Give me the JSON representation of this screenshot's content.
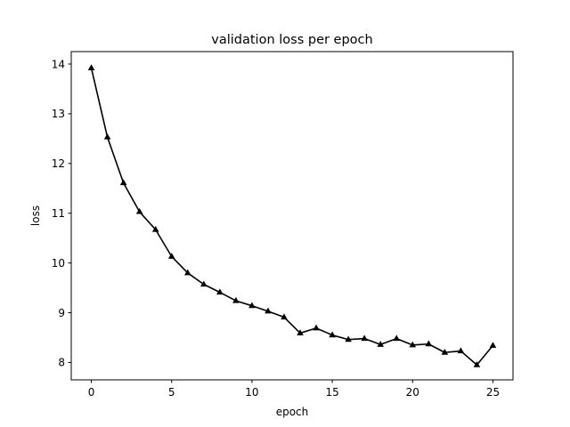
{
  "chart_data": {
    "type": "line",
    "title": "validation loss per epoch",
    "xlabel": "epoch",
    "ylabel": "loss",
    "xlim": [
      -1.25,
      26.25
    ],
    "ylim": [
      7.65,
      14.25
    ],
    "xticks": [
      0,
      5,
      10,
      15,
      20,
      25
    ],
    "yticks": [
      8,
      9,
      10,
      11,
      12,
      13,
      14
    ],
    "grid": false,
    "legend": "none",
    "series": [
      {
        "color": "#000000",
        "marker": "triangle-up",
        "x": [
          0,
          1,
          2,
          3,
          4,
          5,
          6,
          7,
          8,
          9,
          10,
          11,
          12,
          13,
          14,
          15,
          16,
          17,
          18,
          19,
          20,
          21,
          22,
          23,
          24,
          25
        ],
        "y": [
          13.92,
          12.53,
          11.61,
          11.03,
          10.67,
          10.13,
          9.8,
          9.57,
          9.41,
          9.24,
          9.14,
          9.03,
          8.91,
          8.59,
          8.69,
          8.55,
          8.46,
          8.48,
          8.36,
          8.48,
          8.35,
          8.37,
          8.2,
          8.23,
          7.95,
          8.34
        ]
      }
    ]
  }
}
